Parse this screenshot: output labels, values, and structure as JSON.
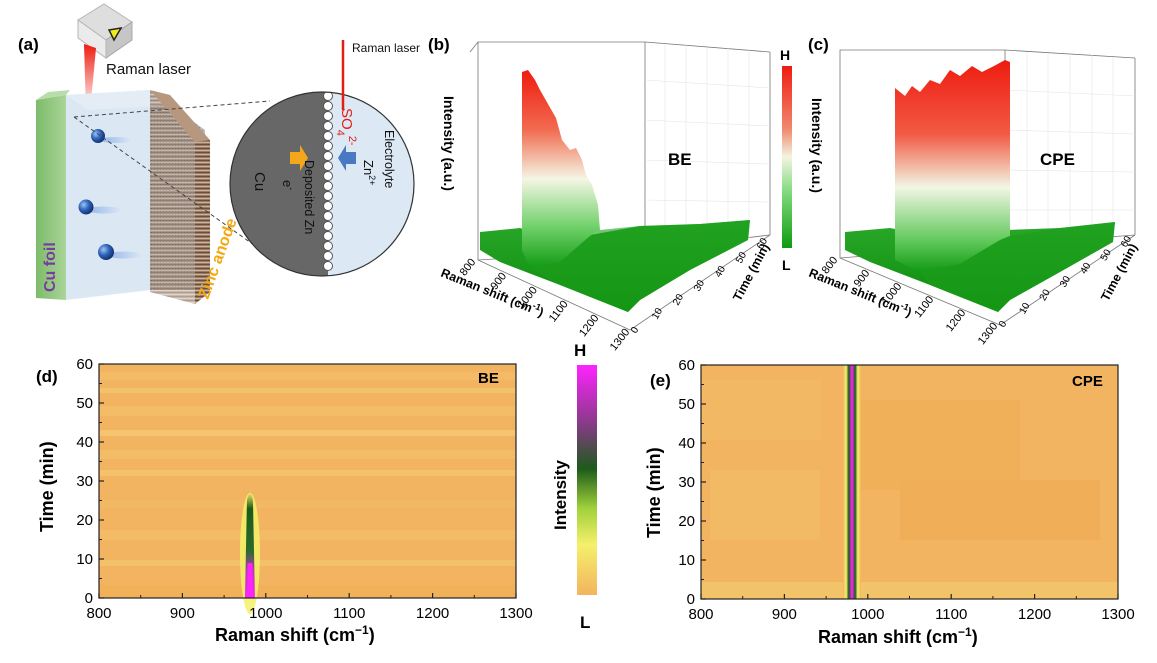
{
  "panel_labels": {
    "a": "(a)",
    "b": "(b)",
    "c": "(c)",
    "d": "(d)",
    "e": "(e)"
  },
  "schematic": {
    "raman_laser": "Raman laser",
    "cu_foil": "Cu foil",
    "zinc_anode": "Zinc anode",
    "cu": "Cu",
    "electron": "e",
    "electron_sup": "-",
    "deposited_zn": "Deposited Zn",
    "electrolyte": "Electrolyte",
    "so4": "SO",
    "so4_sub": "4",
    "so4_sup": "2-",
    "zn": "Zn",
    "zn_sup": "2+",
    "inset_laser": "Raman laser"
  },
  "colorbar_3d": {
    "high": "H",
    "low": "L"
  },
  "colorbar_2d": {
    "high": "H",
    "low": "L",
    "label": "Intensity"
  },
  "colors": {
    "surface_low": "#0f9b0f",
    "surface_mid": "#e8f2c8",
    "surface_high": "#ee1c10",
    "map_bg": "#f2b460",
    "map_peak": "#ff22ff",
    "map_dark": "#1d5a1a",
    "map_yellow": "#f5f06a"
  },
  "chart_data": [
    {
      "type": "area",
      "panel": "b",
      "label": "BE",
      "zlabel": "Intensity (a.u.)",
      "xlabel": "Raman shift (cm",
      "xlabel_sup": "-1",
      "xlabel_end": ")",
      "ylabel": "Time (min)",
      "x_ticks": [
        "800",
        "900",
        "1000",
        "1100",
        "1200",
        "1300"
      ],
      "y_ticks": [
        "0",
        "10",
        "20",
        "30",
        "40",
        "50",
        "60"
      ],
      "peak_position": 981,
      "time": [
        0,
        5,
        10,
        15,
        20,
        25,
        30,
        35,
        40,
        45,
        50,
        55,
        60
      ],
      "peak_relative_intensity": [
        1.0,
        0.92,
        0.8,
        0.62,
        0.5,
        0.3,
        0.05,
        0.03,
        0.03,
        0.03,
        0.03,
        0.03,
        0.03
      ]
    },
    {
      "type": "area",
      "panel": "c",
      "label": "CPE",
      "zlabel": "Intensity (a.u.)",
      "xlabel": "Raman shift (cm",
      "xlabel_sup": "-1",
      "xlabel_end": ")",
      "ylabel": "Time (min)",
      "x_ticks": [
        "800",
        "900",
        "1000",
        "1100",
        "1200",
        "1300"
      ],
      "y_ticks": [
        "0",
        "10",
        "20",
        "30",
        "40",
        "50",
        "60"
      ],
      "peak_position": 981,
      "time": [
        0,
        5,
        10,
        15,
        20,
        25,
        30,
        35,
        40,
        45,
        50,
        55,
        60
      ],
      "peak_relative_intensity": [
        0.78,
        0.8,
        0.83,
        0.84,
        0.86,
        0.85,
        0.9,
        0.92,
        0.9,
        0.95,
        0.92,
        0.96,
        1.0
      ]
    },
    {
      "type": "heatmap",
      "panel": "d",
      "label": "BE",
      "xlabel": "Raman shift (cm",
      "xlabel_sup": "−1",
      "xlabel_end": ")",
      "ylabel": "Time (min)",
      "xlim": [
        800,
        1300
      ],
      "ylim": [
        0,
        60
      ],
      "x_ticks": [
        800,
        900,
        1000,
        1100,
        1200,
        1300
      ],
      "y_ticks": [
        0,
        10,
        20,
        30,
        40,
        50,
        60
      ],
      "peak_position": 981,
      "peak_visible_until_min": 28
    },
    {
      "type": "heatmap",
      "panel": "e",
      "label": "CPE",
      "xlabel": "Raman shift (cm",
      "xlabel_sup": "−1",
      "xlabel_end": ")",
      "ylabel": "Time (min)",
      "xlim": [
        800,
        1300
      ],
      "ylim": [
        0,
        60
      ],
      "x_ticks": [
        800,
        900,
        1000,
        1100,
        1200,
        1300
      ],
      "y_ticks": [
        0,
        10,
        20,
        30,
        40,
        50,
        60
      ],
      "peak_position": 981,
      "peak_visible_until_min": 60
    }
  ]
}
